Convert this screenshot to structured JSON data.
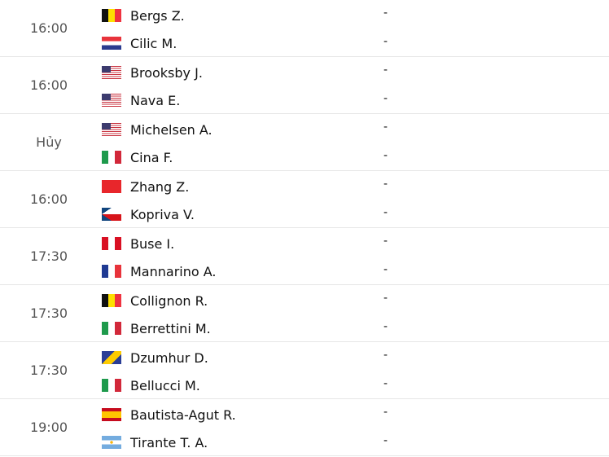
{
  "matches": [
    {
      "time": "16:00",
      "players": [
        {
          "name": "Bergs Z.",
          "flag": "BE"
        },
        {
          "name": "Cilic M.",
          "flag": "HR"
        }
      ],
      "scores": [
        "-",
        "-"
      ]
    },
    {
      "time": "16:00",
      "players": [
        {
          "name": "Brooksby J.",
          "flag": "US"
        },
        {
          "name": "Nava E.",
          "flag": "US"
        }
      ],
      "scores": [
        "-",
        "-"
      ]
    },
    {
      "time": "Hủy",
      "players": [
        {
          "name": "Michelsen A.",
          "flag": "US"
        },
        {
          "name": "Cina F.",
          "flag": "IT"
        }
      ],
      "scores": [
        "-",
        "-"
      ]
    },
    {
      "time": "16:00",
      "players": [
        {
          "name": "Zhang Z.",
          "flag": "CN"
        },
        {
          "name": "Kopriva V.",
          "flag": "CZ"
        }
      ],
      "scores": [
        "-",
        "-"
      ]
    },
    {
      "time": "17:30",
      "players": [
        {
          "name": "Buse I.",
          "flag": "PE"
        },
        {
          "name": "Mannarino A.",
          "flag": "FR"
        }
      ],
      "scores": [
        "-",
        "-"
      ]
    },
    {
      "time": "17:30",
      "players": [
        {
          "name": "Collignon R.",
          "flag": "BE"
        },
        {
          "name": "Berrettini M.",
          "flag": "IT"
        }
      ],
      "scores": [
        "-",
        "-"
      ]
    },
    {
      "time": "17:30",
      "players": [
        {
          "name": "Dzumhur D.",
          "flag": "BA"
        },
        {
          "name": "Bellucci M.",
          "flag": "IT"
        }
      ],
      "scores": [
        "-",
        "-"
      ]
    },
    {
      "time": "19:00",
      "players": [
        {
          "name": "Bautista-Agut R.",
          "flag": "ES"
        },
        {
          "name": "Tirante T. A.",
          "flag": "AR"
        }
      ],
      "scores": [
        "-",
        "-"
      ]
    }
  ]
}
